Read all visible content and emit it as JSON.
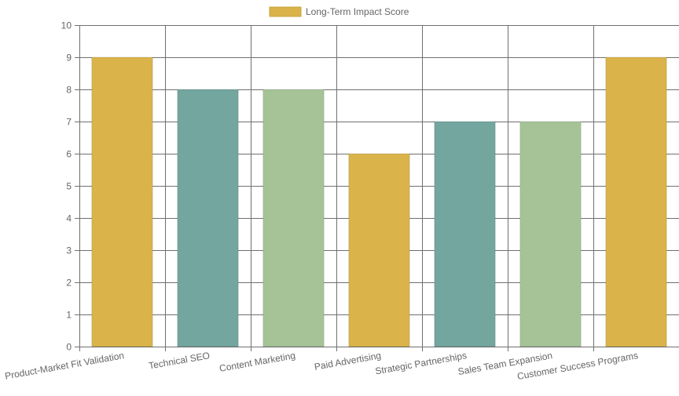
{
  "chart_data": {
    "type": "bar",
    "categories": [
      "Product-Market Fit Validation",
      "Technical SEO",
      "Content Marketing",
      "Paid Advertising",
      "Strategic Partnerships",
      "Sales Team Expansion",
      "Customer Success Programs"
    ],
    "series": [
      {
        "name": "Long-Term Impact Score",
        "values": [
          9,
          8,
          8,
          6,
          7,
          7,
          9
        ]
      }
    ],
    "bar_colors": [
      "#DAB44A",
      "#73A69F",
      "#A6C398",
      "#DAB44A",
      "#73A69F",
      "#A6C398",
      "#DAB44A"
    ],
    "legend_color": "#DAB44A",
    "gridline_color": "#707070",
    "ylim": [
      0,
      10
    ],
    "yticks": [
      "0",
      "1",
      "2",
      "3",
      "4",
      "5",
      "6",
      "7",
      "8",
      "9",
      "10"
    ],
    "legend_position": "top-center",
    "grid": true
  }
}
